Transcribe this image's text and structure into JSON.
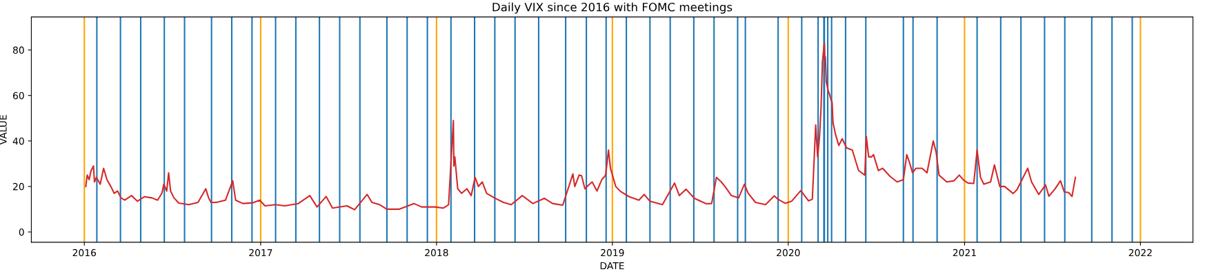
{
  "chart_data": {
    "type": "line",
    "title": "Daily VIX since 2016 with FOMC meetings",
    "xlabel": "DATE",
    "ylabel": "VALUE",
    "xlim": [
      "2015-09-13",
      "2022-04-20"
    ],
    "ylim": [
      -4.5,
      94.5
    ],
    "xticks": [
      "2016",
      "2017",
      "2018",
      "2019",
      "2020",
      "2021",
      "2022"
    ],
    "yticks": [
      0,
      20,
      40,
      60,
      80
    ],
    "grid": false,
    "legend": false,
    "marker": "none",
    "line_style": "solid",
    "series": [
      {
        "color": "#d62728",
        "x": [
          "2016-01-04",
          "2016-01-07",
          "2016-01-11",
          "2016-01-15",
          "2016-01-20",
          "2016-01-22",
          "2016-01-26",
          "2016-02-03",
          "2016-02-10",
          "2016-02-17",
          "2016-02-25",
          "2016-03-03",
          "2016-03-10",
          "2016-03-17",
          "2016-03-25",
          "2016-04-08",
          "2016-04-20",
          "2016-05-05",
          "2016-05-20",
          "2016-06-01",
          "2016-06-10",
          "2016-06-14",
          "2016-06-20",
          "2016-06-24",
          "2016-06-28",
          "2016-07-05",
          "2016-07-15",
          "2016-08-05",
          "2016-08-24",
          "2016-09-09",
          "2016-09-15",
          "2016-09-20",
          "2016-10-01",
          "2016-10-20",
          "2016-11-04",
          "2016-11-10",
          "2016-11-25",
          "2016-12-15",
          "2016-12-30",
          "2017-01-10",
          "2017-02-01",
          "2017-02-20",
          "2017-03-20",
          "2017-04-13",
          "2017-04-28",
          "2017-05-17",
          "2017-05-30",
          "2017-06-29",
          "2017-07-15",
          "2017-08-10",
          "2017-08-20",
          "2017-09-05",
          "2017-09-20",
          "2017-10-15",
          "2017-11-15",
          "2017-12-01",
          "2017-12-29",
          "2018-01-15",
          "2018-01-26",
          "2018-02-05",
          "2018-02-06",
          "2018-02-08",
          "2018-02-14",
          "2018-02-22",
          "2018-03-05",
          "2018-03-14",
          "2018-03-22",
          "2018-03-29",
          "2018-04-06",
          "2018-04-15",
          "2018-05-01",
          "2018-05-20",
          "2018-06-05",
          "2018-06-28",
          "2018-07-20",
          "2018-08-13",
          "2018-08-30",
          "2018-09-20",
          "2018-10-11",
          "2018-10-15",
          "2018-10-24",
          "2018-10-29",
          "2018-11-05",
          "2018-11-12",
          "2018-11-20",
          "2018-11-30",
          "2018-12-10",
          "2018-12-18",
          "2018-12-24",
          "2018-12-28",
          "2019-01-08",
          "2019-01-18",
          "2019-02-05",
          "2019-02-25",
          "2019-03-08",
          "2019-03-20",
          "2019-04-15",
          "2019-05-10",
          "2019-05-20",
          "2019-06-03",
          "2019-06-20",
          "2019-07-15",
          "2019-07-26",
          "2019-08-05",
          "2019-08-15",
          "2019-08-23",
          "2019-09-05",
          "2019-09-20",
          "2019-10-02",
          "2019-10-10",
          "2019-10-25",
          "2019-11-15",
          "2019-12-03",
          "2019-12-10",
          "2019-12-26",
          "2020-01-08",
          "2020-01-27",
          "2020-02-12",
          "2020-02-20",
          "2020-02-27",
          "2020-03-02",
          "2020-03-06",
          "2020-03-09",
          "2020-03-12",
          "2020-03-16",
          "2020-03-17",
          "2020-03-18",
          "2020-03-20",
          "2020-03-24",
          "2020-03-26",
          "2020-03-30",
          "2020-04-01",
          "2020-04-03",
          "2020-04-08",
          "2020-04-15",
          "2020-04-22",
          "2020-05-01",
          "2020-05-13",
          "2020-05-26",
          "2020-06-08",
          "2020-06-11",
          "2020-06-16",
          "2020-06-22",
          "2020-06-26",
          "2020-07-06",
          "2020-07-15",
          "2020-07-30",
          "2020-08-14",
          "2020-08-27",
          "2020-09-03",
          "2020-09-08",
          "2020-09-15",
          "2020-09-22",
          "2020-10-05",
          "2020-10-15",
          "2020-10-28",
          "2020-11-03",
          "2020-11-09",
          "2020-11-25",
          "2020-12-10",
          "2020-12-21",
          "2020-12-30",
          "2021-01-08",
          "2021-01-20",
          "2021-01-27",
          "2021-02-03",
          "2021-02-10",
          "2021-02-24",
          "2021-03-04",
          "2021-03-15",
          "2021-03-25",
          "2021-04-12",
          "2021-04-20",
          "2021-05-12",
          "2021-05-20",
          "2021-06-04",
          "2021-06-18",
          "2021-06-25",
          "2021-07-08",
          "2021-07-19",
          "2021-07-27",
          "2021-08-05",
          "2021-08-12",
          "2021-08-19"
        ],
        "values": [
          20,
          25,
          23,
          27,
          29,
          22,
          24,
          21,
          28,
          23,
          20,
          17,
          18,
          15,
          14,
          16,
          13.5,
          15.5,
          15,
          14,
          17,
          21,
          18,
          26,
          18,
          15,
          12.7,
          12,
          13,
          19,
          15,
          13,
          13,
          14,
          22.5,
          14,
          12.5,
          12.8,
          14,
          11.5,
          12,
          11.5,
          12.5,
          16,
          11,
          15.6,
          10.5,
          11.5,
          9.8,
          16.5,
          13,
          12,
          10,
          10,
          12.5,
          11,
          11,
          10.5,
          12,
          49,
          29,
          33,
          19,
          17,
          19,
          16,
          24,
          20,
          22,
          17,
          15,
          13,
          12,
          16,
          12.5,
          14.8,
          12.5,
          11.8,
          25.5,
          20,
          25,
          24.7,
          19,
          20.5,
          22,
          18,
          23,
          25,
          36,
          28,
          20,
          17.8,
          15.5,
          14,
          16.5,
          13.5,
          12,
          21.5,
          16,
          18.8,
          14.8,
          12.4,
          12.5,
          24,
          22,
          19.9,
          16,
          15,
          21,
          17,
          13,
          12,
          15.9,
          14.5,
          12.6,
          13.5,
          18.2,
          13.7,
          14.4,
          47,
          33,
          42,
          54,
          75,
          83,
          76,
          77,
          66,
          62,
          61,
          58,
          57,
          48,
          43,
          38,
          41,
          37,
          36,
          27,
          25,
          42,
          33,
          33,
          34,
          27,
          28,
          24.5,
          22,
          23,
          34,
          31,
          26,
          28,
          28,
          26,
          40,
          35,
          25,
          22,
          22.5,
          25,
          22.8,
          21.5,
          21.3,
          36,
          24,
          21,
          22,
          29.5,
          20,
          20,
          16.9,
          18.7,
          28,
          22,
          16.5,
          20.7,
          15.7,
          19,
          22.5,
          17.6,
          17.3,
          15.6,
          24
        ]
      }
    ],
    "ref_lines": [
      {
        "axis": "x",
        "value": "2016-01-01",
        "color": "#ffa500"
      },
      {
        "axis": "x",
        "value": "2017-01-01",
        "color": "#ffa500"
      },
      {
        "axis": "x",
        "value": "2018-01-01",
        "color": "#ffa500"
      },
      {
        "axis": "x",
        "value": "2019-01-01",
        "color": "#ffa500"
      },
      {
        "axis": "x",
        "value": "2020-01-01",
        "color": "#ffa500"
      },
      {
        "axis": "x",
        "value": "2021-01-01",
        "color": "#ffa500"
      },
      {
        "axis": "x",
        "value": "2022-01-01",
        "color": "#ffa500"
      },
      {
        "axis": "x",
        "value": "2016-01-27",
        "color": "#1f77b4"
      },
      {
        "axis": "x",
        "value": "2016-03-16",
        "color": "#1f77b4"
      },
      {
        "axis": "x",
        "value": "2016-04-27",
        "color": "#1f77b4"
      },
      {
        "axis": "x",
        "value": "2016-06-15",
        "color": "#1f77b4"
      },
      {
        "axis": "x",
        "value": "2016-07-27",
        "color": "#1f77b4"
      },
      {
        "axis": "x",
        "value": "2016-09-21",
        "color": "#1f77b4"
      },
      {
        "axis": "x",
        "value": "2016-11-02",
        "color": "#1f77b4"
      },
      {
        "axis": "x",
        "value": "2016-12-14",
        "color": "#1f77b4"
      },
      {
        "axis": "x",
        "value": "2017-02-01",
        "color": "#1f77b4"
      },
      {
        "axis": "x",
        "value": "2017-03-15",
        "color": "#1f77b4"
      },
      {
        "axis": "x",
        "value": "2017-05-03",
        "color": "#1f77b4"
      },
      {
        "axis": "x",
        "value": "2017-06-14",
        "color": "#1f77b4"
      },
      {
        "axis": "x",
        "value": "2017-07-26",
        "color": "#1f77b4"
      },
      {
        "axis": "x",
        "value": "2017-09-20",
        "color": "#1f77b4"
      },
      {
        "axis": "x",
        "value": "2017-11-01",
        "color": "#1f77b4"
      },
      {
        "axis": "x",
        "value": "2017-12-13",
        "color": "#1f77b4"
      },
      {
        "axis": "x",
        "value": "2018-01-31",
        "color": "#1f77b4"
      },
      {
        "axis": "x",
        "value": "2018-03-21",
        "color": "#1f77b4"
      },
      {
        "axis": "x",
        "value": "2018-05-02",
        "color": "#1f77b4"
      },
      {
        "axis": "x",
        "value": "2018-06-13",
        "color": "#1f77b4"
      },
      {
        "axis": "x",
        "value": "2018-08-01",
        "color": "#1f77b4"
      },
      {
        "axis": "x",
        "value": "2018-09-26",
        "color": "#1f77b4"
      },
      {
        "axis": "x",
        "value": "2018-11-08",
        "color": "#1f77b4"
      },
      {
        "axis": "x",
        "value": "2018-12-19",
        "color": "#1f77b4"
      },
      {
        "axis": "x",
        "value": "2019-01-30",
        "color": "#1f77b4"
      },
      {
        "axis": "x",
        "value": "2019-03-20",
        "color": "#1f77b4"
      },
      {
        "axis": "x",
        "value": "2019-05-01",
        "color": "#1f77b4"
      },
      {
        "axis": "x",
        "value": "2019-06-19",
        "color": "#1f77b4"
      },
      {
        "axis": "x",
        "value": "2019-07-31",
        "color": "#1f77b4"
      },
      {
        "axis": "x",
        "value": "2019-09-18",
        "color": "#1f77b4"
      },
      {
        "axis": "x",
        "value": "2019-10-04",
        "color": "#1f77b4"
      },
      {
        "axis": "x",
        "value": "2019-12-11",
        "color": "#1f77b4"
      },
      {
        "axis": "x",
        "value": "2020-01-29",
        "color": "#1f77b4"
      },
      {
        "axis": "x",
        "value": "2020-03-03",
        "color": "#1f77b4"
      },
      {
        "axis": "x",
        "value": "2020-03-15",
        "color": "#1f77b4"
      },
      {
        "axis": "x",
        "value": "2020-03-16",
        "color": "#1f77b4"
      },
      {
        "axis": "x",
        "value": "2020-03-23",
        "color": "#1f77b4"
      },
      {
        "axis": "x",
        "value": "2020-03-31",
        "color": "#1f77b4"
      },
      {
        "axis": "x",
        "value": "2020-04-29",
        "color": "#1f77b4"
      },
      {
        "axis": "x",
        "value": "2020-06-10",
        "color": "#1f77b4"
      },
      {
        "axis": "x",
        "value": "2020-08-27",
        "color": "#1f77b4"
      },
      {
        "axis": "x",
        "value": "2020-09-16",
        "color": "#1f77b4"
      },
      {
        "axis": "x",
        "value": "2020-11-05",
        "color": "#1f77b4"
      },
      {
        "axis": "x",
        "value": "2021-01-27",
        "color": "#1f77b4"
      },
      {
        "axis": "x",
        "value": "2021-03-17",
        "color": "#1f77b4"
      },
      {
        "axis": "x",
        "value": "2021-04-28",
        "color": "#1f77b4"
      },
      {
        "axis": "x",
        "value": "2021-06-16",
        "color": "#1f77b4"
      },
      {
        "axis": "x",
        "value": "2021-07-28",
        "color": "#1f77b4"
      },
      {
        "axis": "x",
        "value": "2021-09-22",
        "color": "#1f77b4"
      },
      {
        "axis": "x",
        "value": "2021-11-03",
        "color": "#1f77b4"
      },
      {
        "axis": "x",
        "value": "2021-12-15",
        "color": "#1f77b4"
      }
    ]
  }
}
